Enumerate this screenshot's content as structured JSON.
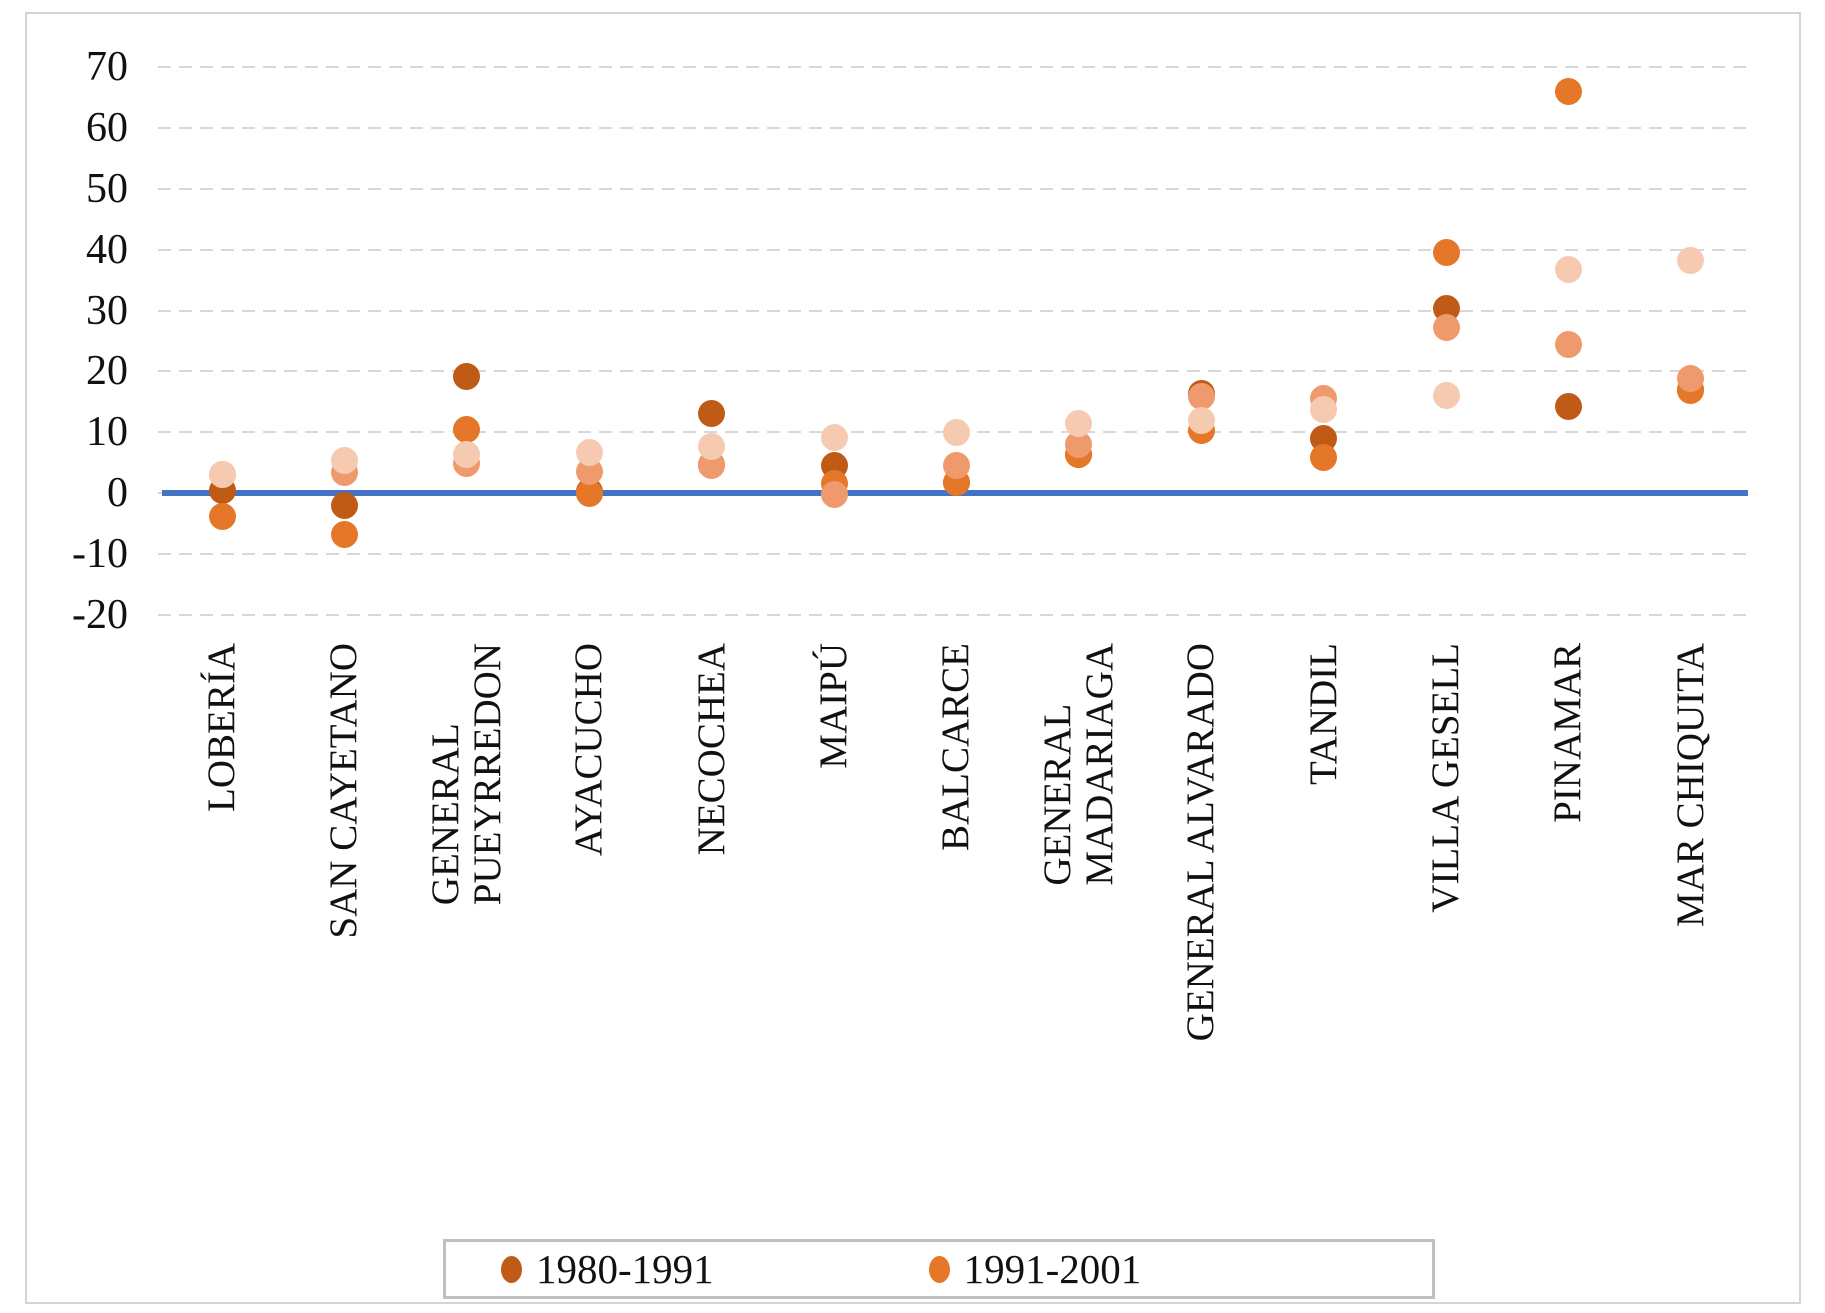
{
  "chart_data": {
    "type": "scatter",
    "title": "",
    "xlabel": "",
    "ylabel": "",
    "yticks": [
      70,
      60,
      50,
      40,
      30,
      20,
      10,
      0,
      -10,
      -20
    ],
    "ylim": [
      -20,
      70
    ],
    "grid": "horizontal-dashed",
    "gridline_color": "#d8d8d8",
    "zero_line_color": "#4472c4",
    "legend_position": "bottom",
    "categories": [
      [
        "LOBERÍA"
      ],
      [
        "SAN CAYETANO"
      ],
      [
        "GENERAL",
        "PUEYRREDON"
      ],
      [
        "AYACUCHO"
      ],
      [
        "NECOCHEA"
      ],
      [
        "MAIPÚ"
      ],
      [
        "BALCARCE"
      ],
      [
        "GENERAL",
        "MADARIAGA"
      ],
      [
        "GENERAL ALVARADO"
      ],
      [
        "TANDIL"
      ],
      [
        "VILLA GESELL"
      ],
      [
        "PINAMAR"
      ],
      [
        "MAR CHIQUITA"
      ]
    ],
    "series": [
      {
        "name": "1980-1991",
        "color": "#bf5b17",
        "in_legend": true,
        "values": [
          0.4,
          -2.1,
          19.2,
          0.3,
          13.0,
          4.6,
          1.7,
          6.4,
          16.3,
          9.0,
          30.4,
          14.3,
          17.0
        ]
      },
      {
        "name": "1991-2001",
        "color": "#e57728",
        "in_legend": true,
        "values": [
          -3.9,
          -6.9,
          10.4,
          0.0,
          4.7,
          1.6,
          1.8,
          6.4,
          10.2,
          5.9,
          39.6,
          66.0,
          16.9
        ]
      },
      {
        "name": "",
        "color": "#ef9a6d",
        "in_legend": false,
        "values": [
          3.0,
          3.3,
          4.8,
          3.5,
          4.6,
          -0.2,
          4.6,
          7.9,
          15.8,
          15.6,
          27.3,
          24.5,
          18.9
        ]
      },
      {
        "name": "",
        "color": "#f6cab1",
        "in_legend": false,
        "values": [
          3.1,
          5.4,
          6.3,
          6.6,
          7.7,
          9.2,
          9.9,
          11.5,
          12.0,
          13.8,
          16.1,
          36.8,
          38.2
        ]
      }
    ]
  },
  "legend": {
    "items": [
      {
        "label": "1980-1991",
        "color": "#bf5b17"
      },
      {
        "label": "1991-2001",
        "color": "#e57728"
      }
    ]
  }
}
